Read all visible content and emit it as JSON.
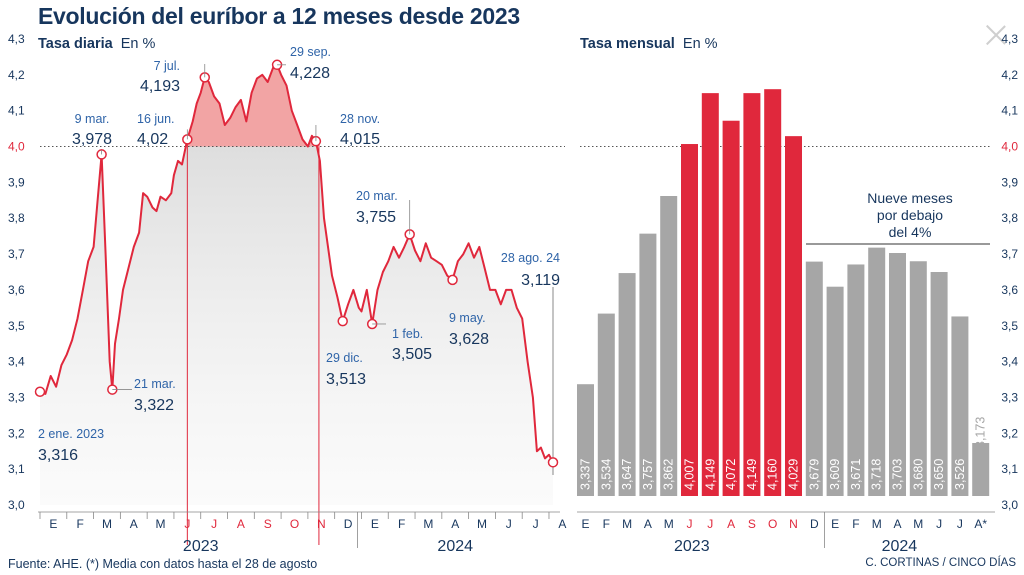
{
  "title": "Evolución del euríbor a 12 meses desde 2023",
  "footer_source": "Fuente: AHE. (*) Media con datos hasta el 28 de agosto",
  "footer_credit": "C. CORTINAS / CINCO DÍAS",
  "colors": {
    "navy": "#17365d",
    "red": "#e0283c",
    "grey": "#a6a6a6",
    "blue_label": "#2f64a8"
  },
  "chart_data": [
    {
      "type": "line",
      "title": "Tasa diaria",
      "unit": "En %",
      "ylim": [
        3.0,
        4.3
      ],
      "yticks": [
        "4,3",
        "4,2",
        "4,1",
        "4,0",
        "3,9",
        "3,8",
        "3,7",
        "3,6",
        "3,5",
        "3,4",
        "3,3",
        "3,2",
        "3,1",
        "3,0"
      ],
      "threshold": 4.0,
      "threshold_label": "4,0",
      "months": [
        "E",
        "F",
        "M",
        "A",
        "M",
        "J",
        "J",
        "A",
        "S",
        "O",
        "N",
        "D",
        "E",
        "F",
        "M",
        "A",
        "M",
        "J",
        "J",
        "A"
      ],
      "years": [
        "2023",
        "2024"
      ],
      "series": [
        {
          "points": [
            [
              0,
              3.316
            ],
            [
              0.2,
              3.31
            ],
            [
              0.4,
              3.36
            ],
            [
              0.6,
              3.33
            ],
            [
              0.8,
              3.39
            ],
            [
              1.0,
              3.42
            ],
            [
              1.2,
              3.46
            ],
            [
              1.4,
              3.52
            ],
            [
              1.6,
              3.6
            ],
            [
              1.8,
              3.68
            ],
            [
              2.0,
              3.72
            ],
            [
              2.15,
              3.85
            ],
            [
              2.3,
              3.978
            ],
            [
              2.45,
              3.7
            ],
            [
              2.6,
              3.4
            ],
            [
              2.7,
              3.322
            ],
            [
              2.8,
              3.45
            ],
            [
              2.95,
              3.52
            ],
            [
              3.1,
              3.6
            ],
            [
              3.3,
              3.66
            ],
            [
              3.5,
              3.72
            ],
            [
              3.7,
              3.76
            ],
            [
              3.85,
              3.87
            ],
            [
              4.0,
              3.86
            ],
            [
              4.2,
              3.83
            ],
            [
              4.35,
              3.82
            ],
            [
              4.5,
              3.86
            ],
            [
              4.7,
              3.85
            ],
            [
              4.9,
              3.87
            ],
            [
              5.0,
              3.92
            ],
            [
              5.15,
              3.96
            ],
            [
              5.3,
              3.95
            ],
            [
              5.5,
              4.02
            ],
            [
              5.7,
              4.07
            ],
            [
              5.85,
              4.12
            ],
            [
              6.0,
              4.15
            ],
            [
              6.15,
              4.193
            ],
            [
              6.3,
              4.18
            ],
            [
              6.5,
              4.14
            ],
            [
              6.7,
              4.12
            ],
            [
              6.9,
              4.06
            ],
            [
              7.1,
              4.08
            ],
            [
              7.3,
              4.11
            ],
            [
              7.5,
              4.13
            ],
            [
              7.7,
              4.07
            ],
            [
              7.9,
              4.15
            ],
            [
              8.1,
              4.19
            ],
            [
              8.3,
              4.2
            ],
            [
              8.5,
              4.18
            ],
            [
              8.7,
              4.22
            ],
            [
              8.85,
              4.228
            ],
            [
              9.0,
              4.2
            ],
            [
              9.2,
              4.17
            ],
            [
              9.4,
              4.1
            ],
            [
              9.6,
              4.06
            ],
            [
              9.8,
              4.02
            ],
            [
              10.0,
              4.0
            ],
            [
              10.15,
              4.03
            ],
            [
              10.3,
              4.015
            ],
            [
              10.45,
              3.96
            ],
            [
              10.6,
              3.8
            ],
            [
              10.75,
              3.72
            ],
            [
              10.9,
              3.64
            ],
            [
              11.1,
              3.58
            ],
            [
              11.3,
              3.513
            ],
            [
              11.5,
              3.56
            ],
            [
              11.7,
              3.6
            ],
            [
              11.9,
              3.55
            ],
            [
              12.0,
              3.54
            ],
            [
              12.2,
              3.6
            ],
            [
              12.4,
              3.505
            ],
            [
              12.6,
              3.6
            ],
            [
              12.8,
              3.65
            ],
            [
              13.0,
              3.68
            ],
            [
              13.2,
              3.72
            ],
            [
              13.4,
              3.69
            ],
            [
              13.6,
              3.72
            ],
            [
              13.8,
              3.755
            ],
            [
              14.0,
              3.71
            ],
            [
              14.2,
              3.68
            ],
            [
              14.4,
              3.73
            ],
            [
              14.6,
              3.69
            ],
            [
              14.8,
              3.68
            ],
            [
              15.0,
              3.67
            ],
            [
              15.2,
              3.64
            ],
            [
              15.4,
              3.628
            ],
            [
              15.6,
              3.68
            ],
            [
              15.8,
              3.7
            ],
            [
              16.0,
              3.73
            ],
            [
              16.2,
              3.69
            ],
            [
              16.4,
              3.72
            ],
            [
              16.6,
              3.66
            ],
            [
              16.8,
              3.6
            ],
            [
              17.0,
              3.6
            ],
            [
              17.2,
              3.56
            ],
            [
              17.4,
              3.6
            ],
            [
              17.6,
              3.6
            ],
            [
              17.8,
              3.55
            ],
            [
              18.0,
              3.52
            ],
            [
              18.2,
              3.4
            ],
            [
              18.4,
              3.3
            ],
            [
              18.55,
              3.15
            ],
            [
              18.7,
              3.16
            ],
            [
              18.85,
              3.13
            ],
            [
              19.0,
              3.14
            ],
            [
              19.15,
              3.119
            ]
          ]
        }
      ],
      "annotations": [
        {
          "date": "2 ene. 2023",
          "value": "3,316"
        },
        {
          "date": "9 mar.",
          "value": "3,978"
        },
        {
          "date": "21 mar.",
          "value": "3,322"
        },
        {
          "date": "16 jun.",
          "value": "4,02"
        },
        {
          "date": "7 jul.",
          "value": "4,193"
        },
        {
          "date": "29 sep.",
          "value": "4,228"
        },
        {
          "date": "28 nov.",
          "value": "4,015"
        },
        {
          "date": "29 dic.",
          "value": "3,513"
        },
        {
          "date": "1 feb.",
          "value": "3,505"
        },
        {
          "date": "20 mar.",
          "value": "3,755"
        },
        {
          "date": "9 may.",
          "value": "3,628"
        },
        {
          "date": "28 ago. 24",
          "value": "3,119"
        }
      ]
    },
    {
      "type": "bar",
      "title": "Tasa mensual",
      "unit": "En %",
      "ylim": [
        3.0,
        4.3
      ],
      "months": [
        "E",
        "F",
        "M",
        "A",
        "M",
        "J",
        "J",
        "A",
        "S",
        "O",
        "N",
        "D",
        "E",
        "F",
        "M",
        "A",
        "M",
        "J",
        "J",
        "A*"
      ],
      "years": [
        "2023",
        "2024"
      ],
      "values": [
        3.337,
        3.534,
        3.647,
        3.757,
        3.862,
        4.007,
        4.149,
        4.072,
        4.149,
        4.16,
        4.029,
        3.679,
        3.609,
        3.671,
        3.718,
        3.703,
        3.68,
        3.65,
        3.526,
        3.173
      ],
      "labels": [
        "3,337",
        "3,534",
        "3,647",
        "3,757",
        "3,862",
        "4,007",
        "4,149",
        "4,072",
        "4,149",
        "4,160",
        "4,029",
        "3,679",
        "3,609",
        "3,671",
        "3,718",
        "3,703",
        "3,680",
        "3,650",
        "3,526",
        "3,173"
      ],
      "note": [
        "Nueve meses",
        "por debajo",
        "del 4%"
      ]
    }
  ]
}
